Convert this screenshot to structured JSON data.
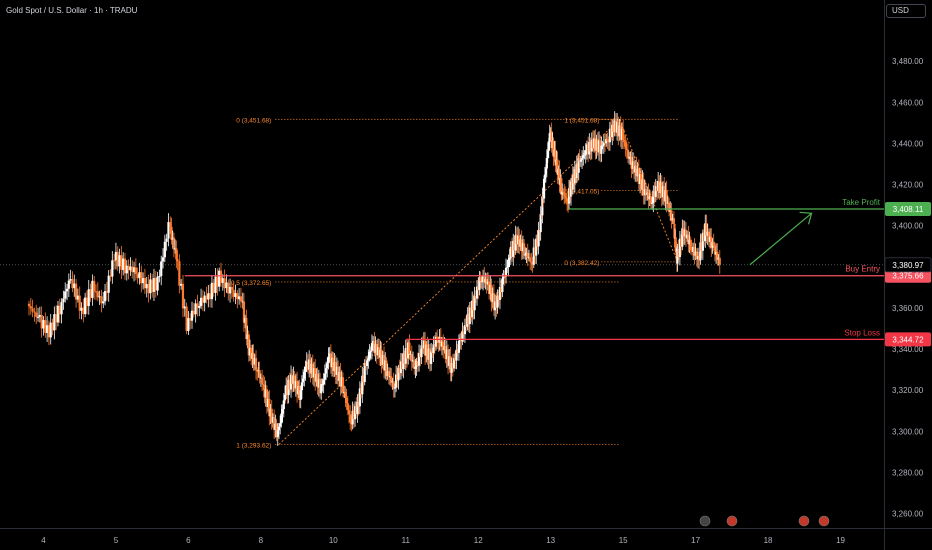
{
  "header": {
    "symbol": "Gold Spot / U.S. Dollar · 1h · TRADU",
    "currency": "USD"
  },
  "chart_data": {
    "type": "line",
    "ylim": [
      3253,
      3500
    ],
    "y_ticks": [
      3260,
      3280,
      3300,
      3320,
      3340,
      3360,
      3380,
      3400,
      3420,
      3440,
      3460,
      3480
    ],
    "x_ticks": [
      {
        "label": "4",
        "t": 0.2
      },
      {
        "label": "5",
        "t": 1.2
      },
      {
        "label": "6",
        "t": 2.2
      },
      {
        "label": "8",
        "t": 3.2
      },
      {
        "label": "10",
        "t": 4.2
      },
      {
        "label": "11",
        "t": 5.2
      },
      {
        "label": "12",
        "t": 6.2
      },
      {
        "label": "13",
        "t": 7.2
      },
      {
        "label": "15",
        "t": 8.2
      },
      {
        "label": "17",
        "t": 9.2
      },
      {
        "label": "18",
        "t": 10.2
      },
      {
        "label": "19",
        "t": 11.2
      }
    ],
    "xlim": [
      -0.4,
      11.8
    ],
    "price_path": [
      [
        0,
        3362
      ],
      [
        0.15,
        3355
      ],
      [
        0.3,
        3348
      ],
      [
        0.45,
        3360
      ],
      [
        0.6,
        3375
      ],
      [
        0.75,
        3358
      ],
      [
        0.9,
        3370
      ],
      [
        1.05,
        3362
      ],
      [
        1.2,
        3385
      ],
      [
        1.35,
        3380
      ],
      [
        1.5,
        3378
      ],
      [
        1.65,
        3370
      ],
      [
        1.8,
        3372
      ],
      [
        1.95,
        3400
      ],
      [
        2.05,
        3385
      ],
      [
        2.2,
        3352
      ],
      [
        2.35,
        3362
      ],
      [
        2.5,
        3366
      ],
      [
        2.65,
        3375
      ],
      [
        2.8,
        3368
      ],
      [
        2.95,
        3364
      ],
      [
        3.05,
        3340
      ],
      [
        3.15,
        3332
      ],
      [
        3.25,
        3322
      ],
      [
        3.35,
        3308
      ],
      [
        3.45,
        3298
      ],
      [
        3.55,
        3318
      ],
      [
        3.65,
        3326
      ],
      [
        3.75,
        3318
      ],
      [
        3.85,
        3334
      ],
      [
        3.95,
        3328
      ],
      [
        4.05,
        3320
      ],
      [
        4.15,
        3336
      ],
      [
        4.25,
        3330
      ],
      [
        4.35,
        3322
      ],
      [
        4.45,
        3305
      ],
      [
        4.55,
        3312
      ],
      [
        4.65,
        3330
      ],
      [
        4.75,
        3342
      ],
      [
        4.85,
        3338
      ],
      [
        4.95,
        3330
      ],
      [
        5.05,
        3322
      ],
      [
        5.15,
        3332
      ],
      [
        5.25,
        3340
      ],
      [
        5.35,
        3330
      ],
      [
        5.45,
        3342
      ],
      [
        5.55,
        3336
      ],
      [
        5.65,
        3346
      ],
      [
        5.75,
        3340
      ],
      [
        5.85,
        3330
      ],
      [
        5.95,
        3342
      ],
      [
        6.05,
        3352
      ],
      [
        6.15,
        3362
      ],
      [
        6.25,
        3375
      ],
      [
        6.35,
        3372
      ],
      [
        6.45,
        3360
      ],
      [
        6.55,
        3372
      ],
      [
        6.65,
        3385
      ],
      [
        6.75,
        3394
      ],
      [
        6.85,
        3388
      ],
      [
        6.95,
        3382
      ],
      [
        7.05,
        3395
      ],
      [
        7.12,
        3420
      ],
      [
        7.2,
        3445
      ],
      [
        7.28,
        3432
      ],
      [
        7.36,
        3418
      ],
      [
        7.44,
        3412
      ],
      [
        7.52,
        3422
      ],
      [
        7.6,
        3430
      ],
      [
        7.7,
        3436
      ],
      [
        7.8,
        3440
      ],
      [
        7.9,
        3438
      ],
      [
        8.0,
        3442
      ],
      [
        8.1,
        3449
      ],
      [
        8.2,
        3444
      ],
      [
        8.3,
        3432
      ],
      [
        8.4,
        3426
      ],
      [
        8.5,
        3418
      ],
      [
        8.6,
        3412
      ],
      [
        8.7,
        3420
      ],
      [
        8.8,
        3414
      ],
      [
        8.9,
        3402
      ],
      [
        8.95,
        3383
      ],
      [
        9.05,
        3398
      ],
      [
        9.15,
        3390
      ],
      [
        9.25,
        3384
      ],
      [
        9.35,
        3398
      ],
      [
        9.45,
        3390
      ],
      [
        9.55,
        3382
      ]
    ],
    "fibonacci": [
      {
        "label": "0 (3,451.68)",
        "price": 3451.68
      },
      {
        "label": "0.5 (3,372.65)",
        "price": 3372.65
      },
      {
        "label": "1 (3,293.62)",
        "price": 3293.62
      }
    ],
    "fibonacci_2": [
      {
        "label": "1 (3,451.68)",
        "price": 3451.68
      },
      {
        "label": "0.5 (3,417.05)",
        "price": 3417.05
      },
      {
        "label": "0 (3,382.42)",
        "price": 3382.42
      }
    ],
    "levels": [
      {
        "name": "Take Profit",
        "price": 3408.11,
        "price_label": "3,408.11",
        "color": "#4caf50"
      },
      {
        "name": "Buy Entry",
        "price": 3375.66,
        "price_label": "3,375.66",
        "color": "#f7525f"
      },
      {
        "name": "Stop Loss",
        "price": 3344.72,
        "price_label": "3,344.72",
        "color": "#f23645"
      }
    ],
    "current_price": {
      "price": 3380.97,
      "label": "3,380.97"
    },
    "colors": {
      "up": "#ffffff",
      "down": "#ff7a2b",
      "fib": "#ff8a2b",
      "tp": "#4caf50",
      "sl": "#f23645",
      "entry": "#ff5a36"
    }
  }
}
